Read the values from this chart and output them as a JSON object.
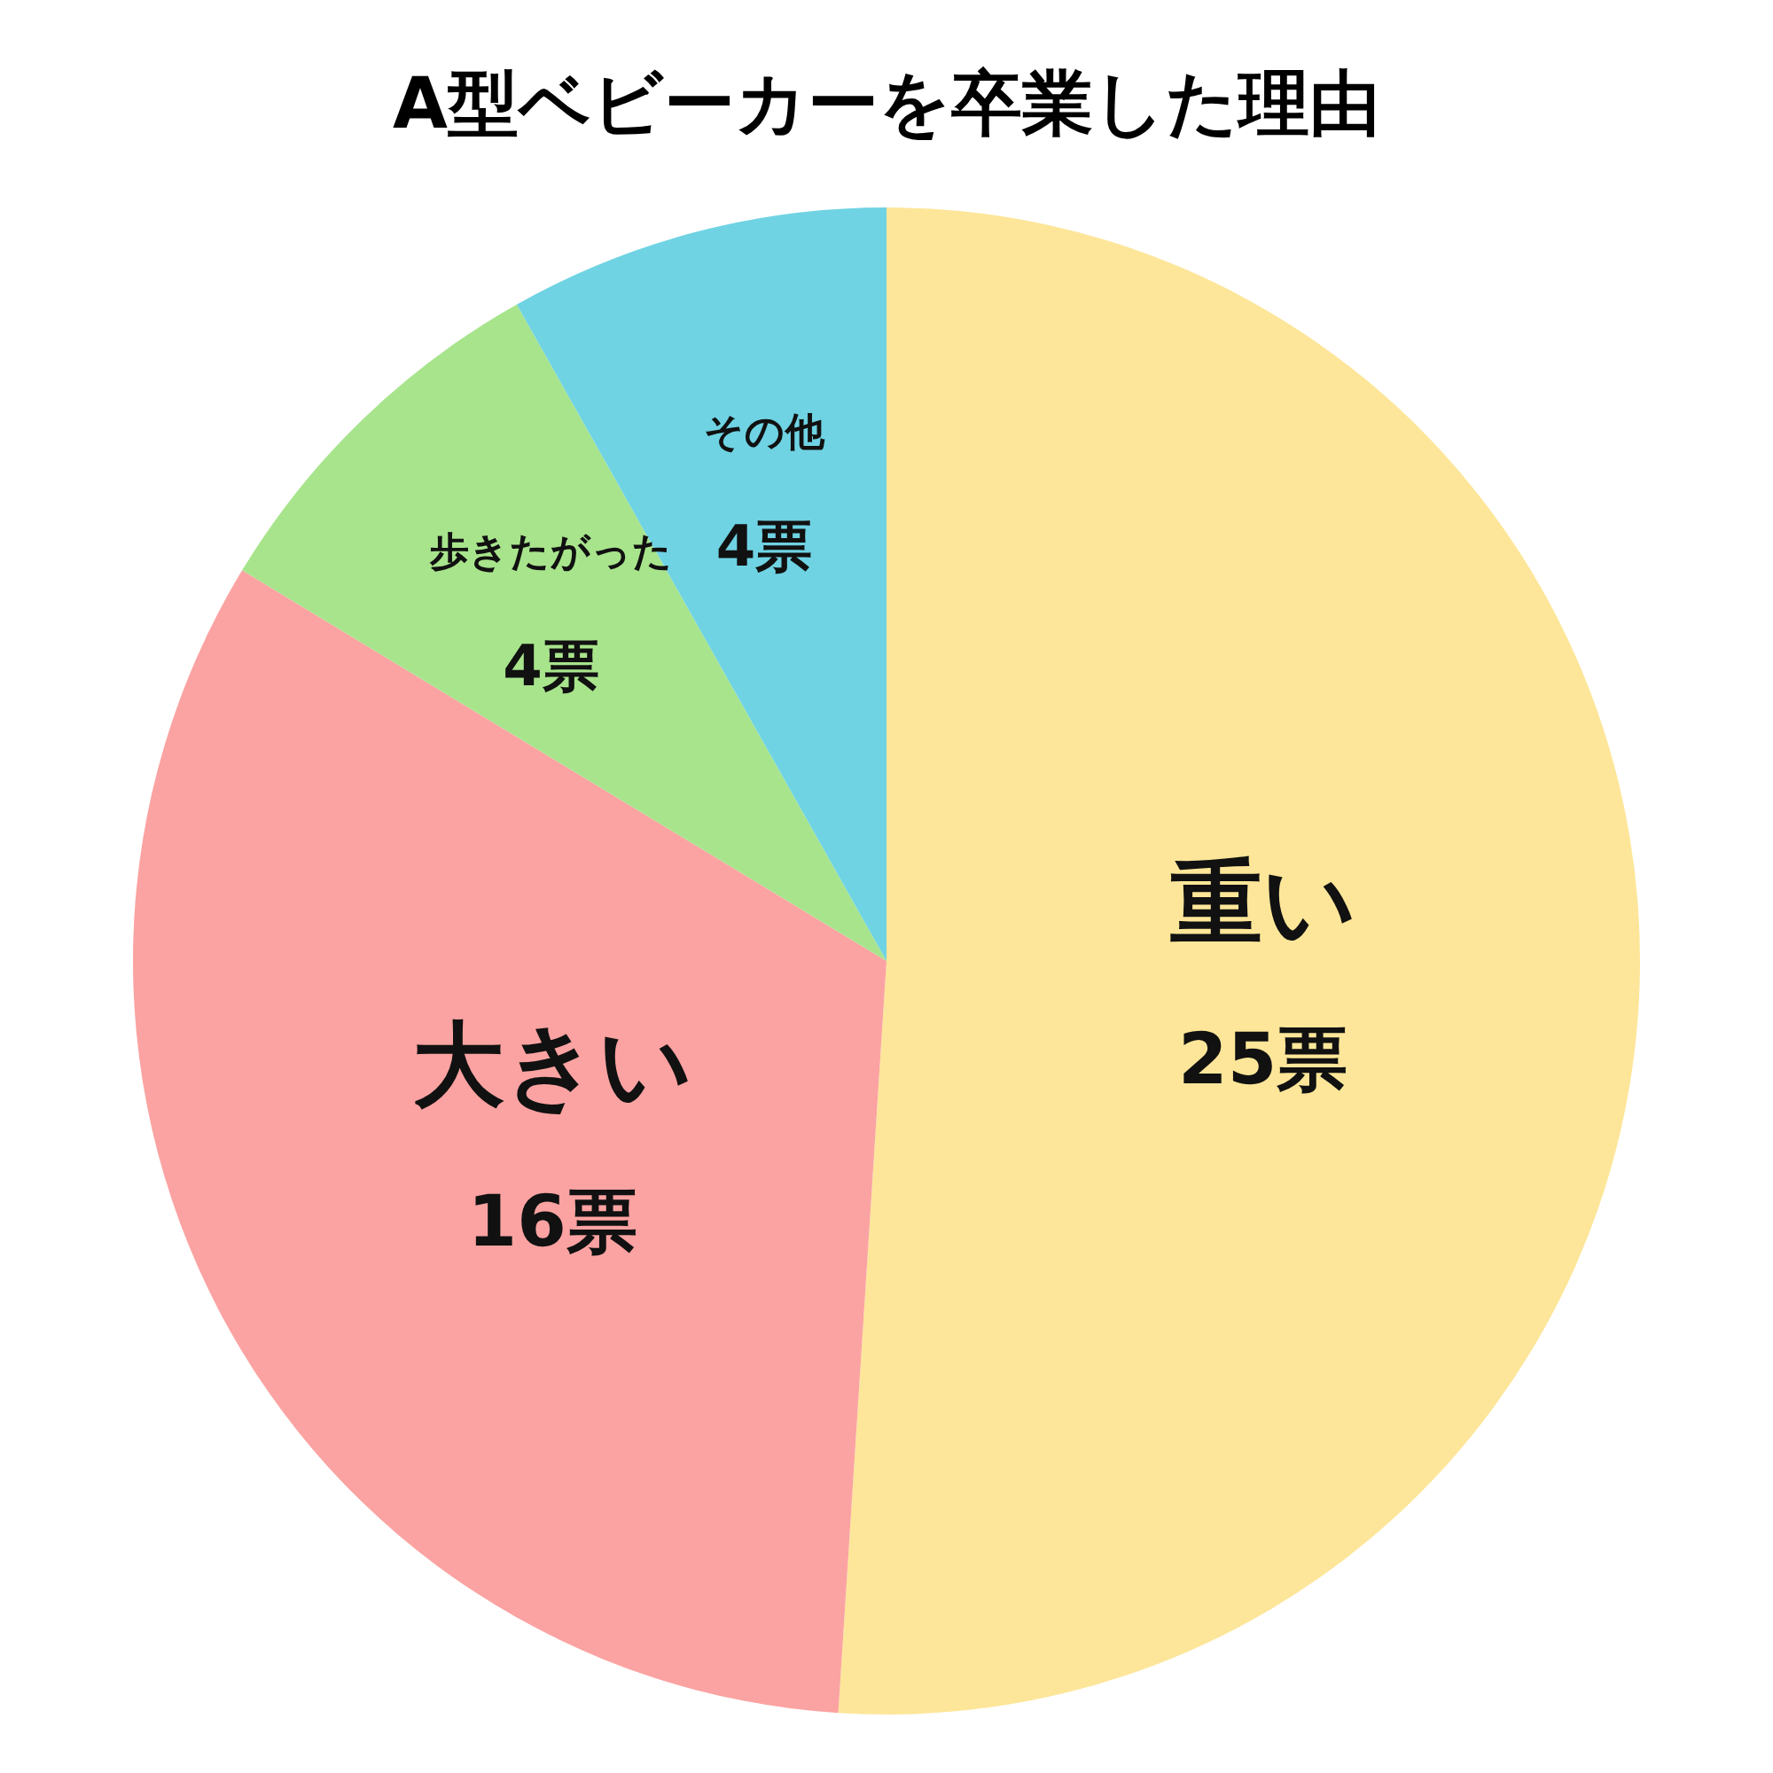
{
  "chart_data": {
    "type": "pie",
    "title": "A型ベビーカーを卒業した理由",
    "categories": [
      "重い",
      "大きい",
      "歩きたがった",
      "その他"
    ],
    "values": [
      25,
      16,
      4,
      4
    ],
    "value_labels": [
      "25票",
      "16票",
      "4票",
      "4票"
    ],
    "colors": [
      "#fde699",
      "#fba3a2",
      "#a8e48c",
      "#6fd3e3"
    ]
  }
}
